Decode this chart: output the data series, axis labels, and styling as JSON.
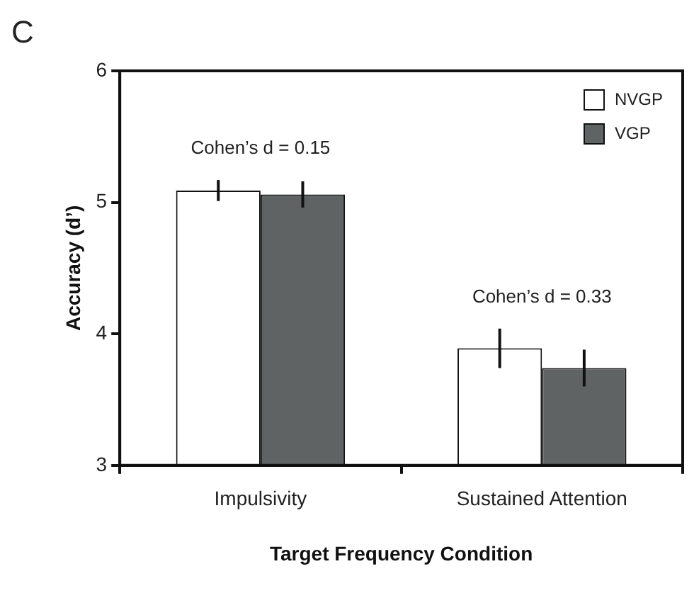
{
  "chart_data": {
    "type": "bar",
    "categories": [
      "Impulsivity",
      "Sustained Attention"
    ],
    "series": [
      {
        "name": "NVGP",
        "color": "#ffffff",
        "values": [
          5.09,
          3.89
        ],
        "errors": [
          0.08,
          0.15
        ]
      },
      {
        "name": "VGP",
        "color": "#5f6363",
        "values": [
          5.06,
          3.74
        ],
        "errors": [
          0.1,
          0.14
        ]
      }
    ],
    "ylim": [
      3,
      6
    ],
    "yticks": [
      3,
      4,
      5,
      6
    ],
    "ylabel": "Accuracy (d’)",
    "xlabel": "Target Frequency Condition",
    "annotations": [
      "C",
      "Cohen’s d = 0.15",
      "Cohen’s d = 0.33"
    ],
    "legend": "top right",
    "grid": false
  }
}
